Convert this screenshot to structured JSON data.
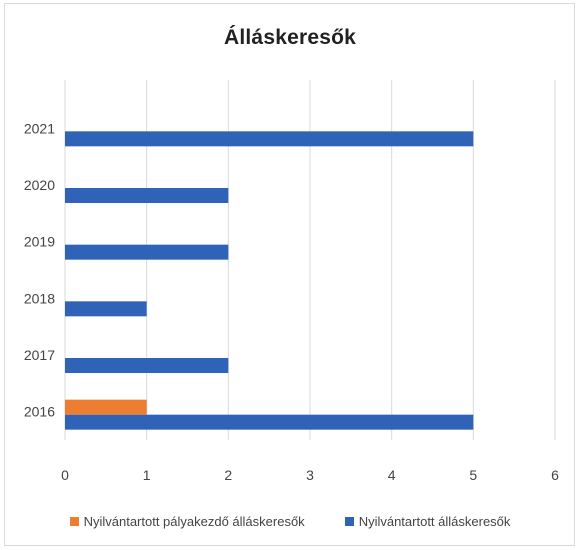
{
  "chart_data": {
    "type": "bar",
    "orientation": "horizontal",
    "title": "Álláskeresők",
    "categories": [
      "2016",
      "2017",
      "2018",
      "2019",
      "2020",
      "2021"
    ],
    "series": [
      {
        "name": "Nyilvántartott pályakezdő álláskeresők",
        "color": "#ed7d31",
        "values": [
          1,
          0,
          0,
          0,
          0,
          0
        ]
      },
      {
        "name": "Nyilvántartott álláskeresők",
        "color": "#2e63b8",
        "values": [
          5,
          2,
          1,
          2,
          2,
          5
        ]
      }
    ],
    "xlim": [
      0,
      6
    ],
    "xticks": [
      "0",
      "1",
      "2",
      "3",
      "4",
      "5",
      "6"
    ],
    "grid": true,
    "legend_position": "bottom"
  }
}
